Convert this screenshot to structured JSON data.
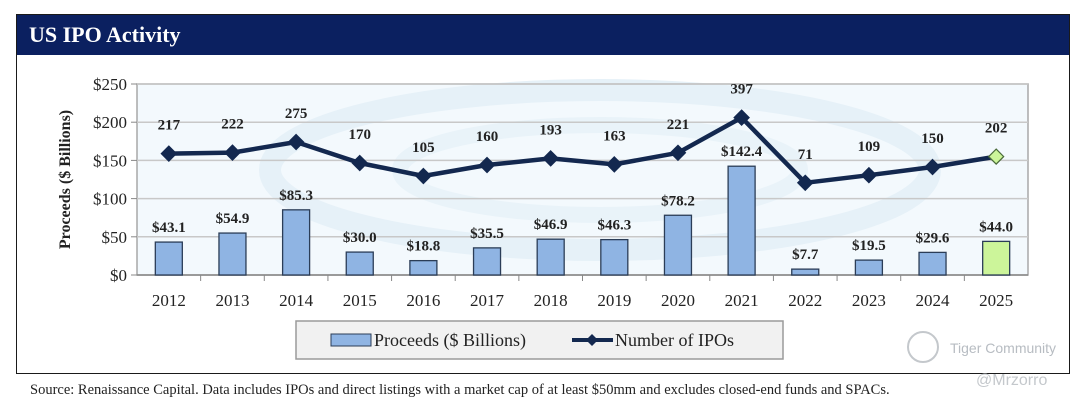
{
  "header": {
    "title": "US IPO Activity"
  },
  "chart_data": {
    "type": "bar+line",
    "title": "US IPO Activity",
    "categories": [
      "2012",
      "2013",
      "2014",
      "2015",
      "2016",
      "2017",
      "2018",
      "2019",
      "2020",
      "2021",
      "2022",
      "2023",
      "2024",
      "2025"
    ],
    "series": [
      {
        "name": "Proceeds ($ Billions)",
        "type": "bar",
        "axis": "primary",
        "values": [
          43.1,
          54.9,
          85.3,
          30.0,
          18.8,
          35.5,
          46.9,
          46.3,
          78.2,
          142.4,
          7.7,
          19.5,
          29.6,
          44.0
        ],
        "labels": [
          "$43.1",
          "$54.9",
          "$85.3",
          "$30.0",
          "$18.8",
          "$35.5",
          "$46.9",
          "$46.3",
          "$78.2",
          "$142.4",
          "$7.7",
          "$19.5",
          "$29.6",
          "$44.0"
        ],
        "color": "#8fb4e3",
        "highlight_last_color": "#ccf59a"
      },
      {
        "name": "Number of IPOs",
        "type": "line",
        "axis": "secondary-hidden",
        "values": [
          217,
          222,
          275,
          170,
          105,
          160,
          193,
          163,
          221,
          397,
          71,
          109,
          150,
          202
        ],
        "color": "#13284f",
        "highlight_last_color": "#ccf59a"
      }
    ],
    "ylabel": "Proceeds ($ Billions)",
    "xlabel": "",
    "ylim": [
      0,
      250
    ],
    "yticks": [
      0,
      50,
      100,
      150,
      200,
      250
    ],
    "ytick_labels": [
      "$0",
      "$50",
      "$100",
      "$150",
      "$200",
      "$250"
    ],
    "y2lim": [
      -390,
      565
    ],
    "grid": true,
    "legend": {
      "position": "bottom-center",
      "entries": [
        "Proceeds ($ Billions)",
        "Number of IPOs"
      ]
    }
  },
  "footer": {
    "source": "Source: Renaissance Capital. Data includes IPOs and direct listings with a market cap of at least $50mm and excludes closed-end funds and SPACs."
  },
  "watermarks": {
    "community": "Tiger Community",
    "handle": "@Mrzorro"
  }
}
